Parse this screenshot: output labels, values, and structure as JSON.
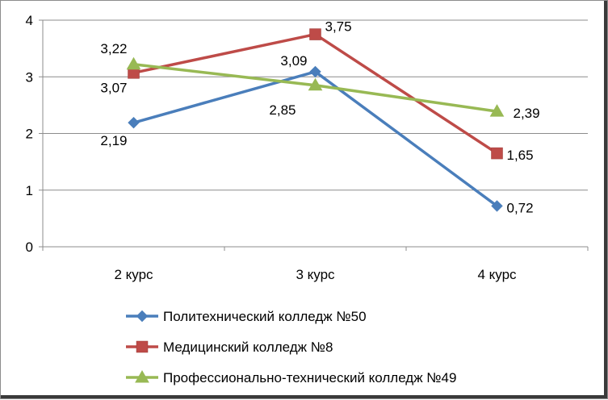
{
  "chart_data": {
    "type": "line",
    "categories": [
      "2 курс",
      "3 курс",
      "4 курс"
    ],
    "ylim": [
      0,
      4
    ],
    "yticks": [
      0,
      1,
      2,
      3,
      4
    ],
    "grid": true,
    "legend_position": "bottom",
    "series": [
      {
        "name": "Политехнический колледж №50",
        "values": [
          2.19,
          3.09,
          0.72
        ],
        "labels": [
          "2,19",
          "3,09",
          "0,72"
        ],
        "color": "#4a7ebb",
        "marker": "diamond"
      },
      {
        "name": "Медицинский колледж №8",
        "values": [
          3.07,
          3.75,
          1.65
        ],
        "labels": [
          "3,07",
          "3,75",
          "1,65"
        ],
        "color": "#be4b48",
        "marker": "square"
      },
      {
        "name": "Профессионально-технический колледж №49",
        "values": [
          3.22,
          2.85,
          2.39
        ],
        "labels": [
          "3,22",
          "2,85",
          "2,39"
        ],
        "color": "#98b954",
        "marker": "triangle"
      }
    ]
  }
}
